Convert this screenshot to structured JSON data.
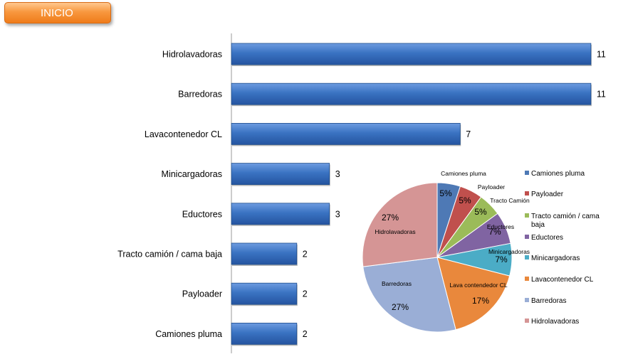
{
  "nav": {
    "inicio_label": "INICIO"
  },
  "chart_data": [
    {
      "type": "bar",
      "orientation": "horizontal",
      "categories": [
        "Hidrolavadoras",
        "Barredoras",
        "Lavacontenedor CL",
        "Minicargadoras",
        "Eductores",
        "Tracto camión / cama baja",
        "Payloader",
        "Camiones pluma"
      ],
      "values": [
        11,
        11,
        7,
        3,
        3,
        2,
        2,
        2
      ],
      "bar_color": "#3a73c2",
      "grid": false
    },
    {
      "type": "pie",
      "slices": [
        {
          "label": "Camiones pluma",
          "value": 5,
          "pct_label": "5%",
          "color": "#4e79b5"
        },
        {
          "label": "Payloader",
          "value": 5,
          "pct_label": "5%",
          "color": "#c0504d"
        },
        {
          "label": "Tracto Camión",
          "value": 5,
          "pct_label": "5%",
          "color": "#9bbb59"
        },
        {
          "label": "Eductores",
          "value": 7,
          "pct_label": "7%",
          "color": "#8064a2"
        },
        {
          "label": "Minicargadoras",
          "value": 7,
          "pct_label": "7%",
          "color": "#4bacc6"
        },
        {
          "label": "Lava contendedor CL",
          "value": 17,
          "pct_label": "17%",
          "color": "#e9883c"
        },
        {
          "label": "Barredoras",
          "value": 27,
          "pct_label": "27%",
          "color": "#9aaed6"
        },
        {
          "label": "Hidrolavadoras",
          "value": 27,
          "pct_label": "27%",
          "color": "#d59595"
        }
      ],
      "legend": {
        "placement": "right",
        "entries": [
          "Camiones pluma",
          "Payloader",
          "Tracto camión / cama baja",
          "Eductores",
          "Minicargadoras",
          "Lavacontenedor CL",
          "Barredoras",
          "Hidrolavadoras"
        ]
      }
    }
  ]
}
